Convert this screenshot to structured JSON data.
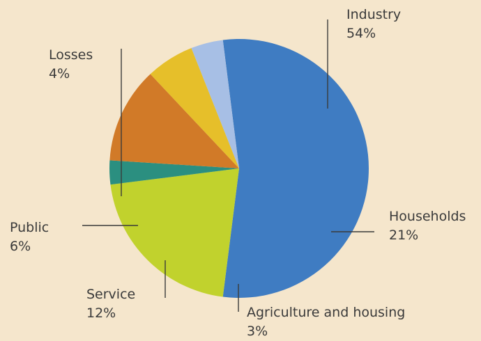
{
  "chart_data": {
    "type": "pie",
    "title": "",
    "slices": [
      {
        "label": "Industry",
        "value": 54,
        "display": "54%",
        "color": "#3f7cc2"
      },
      {
        "label": "Households",
        "value": 21,
        "display": "21%",
        "color": "#c1d22d"
      },
      {
        "label": "Agriculture and housing",
        "value": 3,
        "display": "3%",
        "color": "#2b8f80"
      },
      {
        "label": "Service",
        "value": 12,
        "display": "12%",
        "color": "#d17a28"
      },
      {
        "label": "Public",
        "value": 6,
        "display": "6%",
        "color": "#e6bf2a"
      },
      {
        "label": "Losses",
        "value": 4,
        "display": "4%",
        "color": "#a7bfe5"
      }
    ]
  }
}
